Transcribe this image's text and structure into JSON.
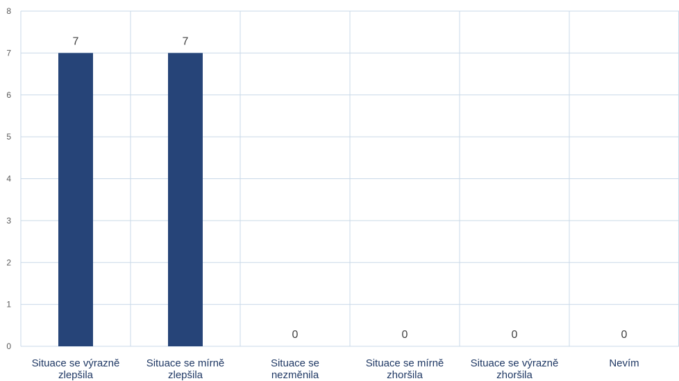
{
  "chart_data": {
    "type": "bar",
    "title": "",
    "xlabel": "",
    "ylabel": "",
    "categories": [
      [
        "Situace se výrazně",
        "zlepšila"
      ],
      [
        "Situace se mírně",
        "zlepšila"
      ],
      [
        "Situace se",
        "nezměnila"
      ],
      [
        "Situace se mírně",
        "zhoršila"
      ],
      [
        "Situace se výrazně",
        "zhoršila"
      ],
      [
        "Nevím"
      ]
    ],
    "values": [
      7,
      7,
      0,
      0,
      0,
      0
    ],
    "data_labels": [
      "7",
      "7",
      "0",
      "0",
      "0",
      "0"
    ],
    "y_ticks": [
      "0",
      "1",
      "2",
      "3",
      "4",
      "5",
      "6",
      "7",
      "8"
    ],
    "ylim": [
      0,
      8
    ],
    "grid": true,
    "legend": "none",
    "colors": {
      "bar": "#264478",
      "grid": "#c9d9e8",
      "category_text": "#1f3864",
      "tick_text": "#595959",
      "data_label_text": "#404040"
    }
  }
}
